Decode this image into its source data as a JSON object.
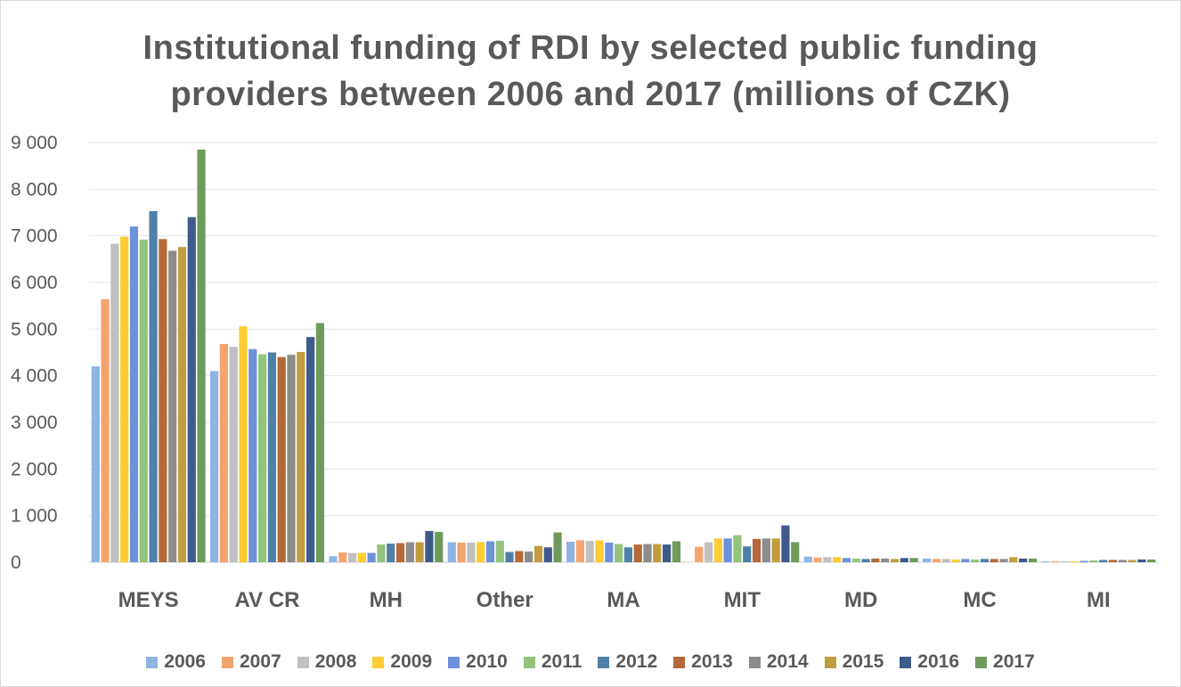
{
  "chart_data": {
    "type": "bar",
    "title": "Institutional funding of RDI by selected public funding providers between 2006 and 2017 (millions of CZK)",
    "title_lines": [
      "Institutional funding of RDI by selected public funding",
      "providers between 2006 and 2017 (millions of CZK)"
    ],
    "categories": [
      "MEYS",
      "AV CR",
      "MH",
      "Other",
      "MA",
      "MIT",
      "MD",
      "MC",
      "MI"
    ],
    "ylim": [
      0,
      9000
    ],
    "yticks": [
      0,
      1000,
      2000,
      3000,
      4000,
      5000,
      6000,
      7000,
      8000,
      9000
    ],
    "ytick_labels": [
      "0",
      "1 000",
      "2 000",
      "3 000",
      "4 000",
      "5 000",
      "6 000",
      "7 000",
      "8 000",
      "9 000"
    ],
    "grid": true,
    "legend_position": "bottom",
    "series": [
      {
        "name": "2006",
        "color": "#8EB4E3",
        "values": [
          4200,
          4100,
          130,
          430,
          440,
          0,
          120,
          80,
          20
        ]
      },
      {
        "name": "2007",
        "color": "#F4A46E",
        "values": [
          5640,
          4680,
          210,
          420,
          470,
          330,
          100,
          70,
          20
        ]
      },
      {
        "name": "2008",
        "color": "#C0C0C0",
        "values": [
          6830,
          4620,
          200,
          420,
          460,
          430,
          110,
          70,
          20
        ]
      },
      {
        "name": "2009",
        "color": "#FFCC33",
        "values": [
          6980,
          5060,
          200,
          430,
          470,
          510,
          110,
          60,
          20
        ]
      },
      {
        "name": "2010",
        "color": "#6D92DA",
        "values": [
          7200,
          4570,
          200,
          450,
          420,
          510,
          90,
          70,
          30
        ]
      },
      {
        "name": "2011",
        "color": "#93C47D",
        "values": [
          6920,
          4460,
          380,
          460,
          390,
          580,
          80,
          60,
          40
        ]
      },
      {
        "name": "2012",
        "color": "#4F81A8",
        "values": [
          7530,
          4500,
          400,
          220,
          320,
          340,
          70,
          70,
          50
        ]
      },
      {
        "name": "2013",
        "color": "#B5693B",
        "values": [
          6930,
          4400,
          410,
          240,
          380,
          500,
          80,
          70,
          50
        ]
      },
      {
        "name": "2014",
        "color": "#8C8C8C",
        "values": [
          6680,
          4450,
          430,
          230,
          390,
          510,
          80,
          70,
          50
        ]
      },
      {
        "name": "2015",
        "color": "#C09D40",
        "values": [
          6760,
          4510,
          430,
          350,
          390,
          510,
          70,
          110,
          50
        ]
      },
      {
        "name": "2016",
        "color": "#3F5B8C",
        "values": [
          7400,
          4830,
          670,
          320,
          380,
          790,
          90,
          80,
          60
        ]
      },
      {
        "name": "2017",
        "color": "#6E9B5B",
        "values": [
          8850,
          5130,
          650,
          640,
          450,
          430,
          90,
          80,
          60
        ]
      }
    ]
  }
}
